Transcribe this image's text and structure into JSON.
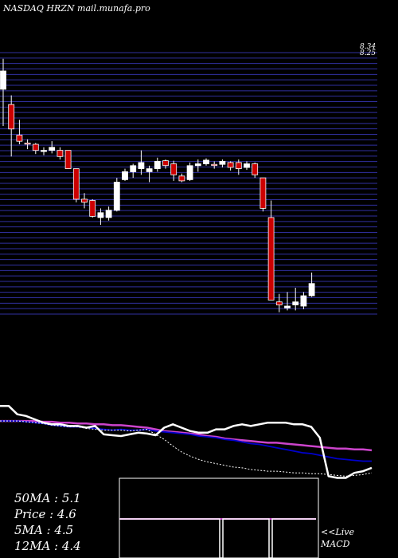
{
  "header": {
    "text": "NASDAQ HRZN mail.munafa.pro"
  },
  "colors": {
    "background": "#000000",
    "grid": "#3030a0",
    "up_candle": "#ffffff",
    "down_candle": "#cc0000",
    "price_line": "#ffffff",
    "ma_fast": "#ffffff",
    "ma_mid": "#0000cc",
    "ma_slow": "#cc44cc",
    "macd_zero": "#cc44cc",
    "panel_border": "#ffffff"
  },
  "chart_data": [
    {
      "type": "candlestick",
      "title": "NASDAQ HRZN mail.munafa.pro",
      "ylim": [
        4.12,
        8.4
      ],
      "y_ticks": [
        "8.34",
        "8.25"
      ],
      "candles": [
        {
          "o": 7.8,
          "h": 8.3,
          "l": 7.2,
          "c": 8.1
        },
        {
          "o": 7.55,
          "h": 7.7,
          "l": 6.7,
          "c": 7.15
        },
        {
          "o": 7.05,
          "h": 7.3,
          "l": 6.9,
          "c": 6.95
        },
        {
          "o": 6.92,
          "h": 6.98,
          "l": 6.82,
          "c": 6.9
        },
        {
          "o": 6.9,
          "h": 6.92,
          "l": 6.74,
          "c": 6.8
        },
        {
          "o": 6.78,
          "h": 6.85,
          "l": 6.72,
          "c": 6.8
        },
        {
          "o": 6.8,
          "h": 6.95,
          "l": 6.75,
          "c": 6.85
        },
        {
          "o": 6.8,
          "h": 6.85,
          "l": 6.65,
          "c": 6.7
        },
        {
          "o": 6.8,
          "h": 6.8,
          "l": 6.5,
          "c": 6.5
        },
        {
          "o": 6.5,
          "h": 6.5,
          "l": 5.95,
          "c": 6.0
        },
        {
          "o": 6.0,
          "h": 6.1,
          "l": 5.85,
          "c": 5.95
        },
        {
          "o": 5.98,
          "h": 6.0,
          "l": 5.7,
          "c": 5.72
        },
        {
          "o": 5.7,
          "h": 5.85,
          "l": 5.58,
          "c": 5.78
        },
        {
          "o": 5.7,
          "h": 5.88,
          "l": 5.65,
          "c": 5.82
        },
        {
          "o": 5.82,
          "h": 6.35,
          "l": 5.8,
          "c": 6.28
        },
        {
          "o": 6.32,
          "h": 6.5,
          "l": 6.3,
          "c": 6.45
        },
        {
          "o": 6.45,
          "h": 6.58,
          "l": 6.35,
          "c": 6.55
        },
        {
          "o": 6.5,
          "h": 6.8,
          "l": 6.4,
          "c": 6.6
        },
        {
          "o": 6.45,
          "h": 6.55,
          "l": 6.28,
          "c": 6.5
        },
        {
          "o": 6.5,
          "h": 6.68,
          "l": 6.45,
          "c": 6.62
        },
        {
          "o": 6.63,
          "h": 6.65,
          "l": 6.5,
          "c": 6.55
        },
        {
          "o": 6.58,
          "h": 6.63,
          "l": 6.3,
          "c": 6.4
        },
        {
          "o": 6.38,
          "h": 6.42,
          "l": 6.28,
          "c": 6.3
        },
        {
          "o": 6.32,
          "h": 6.6,
          "l": 6.3,
          "c": 6.55
        },
        {
          "o": 6.55,
          "h": 6.65,
          "l": 6.45,
          "c": 6.58
        },
        {
          "o": 6.58,
          "h": 6.67,
          "l": 6.55,
          "c": 6.64
        },
        {
          "o": 6.57,
          "h": 6.62,
          "l": 6.5,
          "c": 6.55
        },
        {
          "o": 6.57,
          "h": 6.65,
          "l": 6.52,
          "c": 6.62
        },
        {
          "o": 6.6,
          "h": 6.62,
          "l": 6.47,
          "c": 6.52
        },
        {
          "o": 6.6,
          "h": 6.65,
          "l": 6.4,
          "c": 6.5
        },
        {
          "o": 6.52,
          "h": 6.62,
          "l": 6.48,
          "c": 6.58
        },
        {
          "o": 6.58,
          "h": 6.6,
          "l": 6.35,
          "c": 6.4
        },
        {
          "o": 6.35,
          "h": 6.35,
          "l": 5.8,
          "c": 5.85
        },
        {
          "o": 5.7,
          "h": 5.98,
          "l": 4.35,
          "c": 4.35
        },
        {
          "o": 4.32,
          "h": 4.45,
          "l": 4.15,
          "c": 4.27
        },
        {
          "o": 4.22,
          "h": 4.48,
          "l": 4.18,
          "c": 4.25
        },
        {
          "o": 4.27,
          "h": 4.55,
          "l": 4.18,
          "c": 4.32
        },
        {
          "o": 4.25,
          "h": 4.48,
          "l": 4.2,
          "c": 4.42
        },
        {
          "o": 4.42,
          "h": 4.8,
          "l": 4.4,
          "c": 4.62
        }
      ]
    },
    {
      "type": "line",
      "ylim": [
        0,
        1
      ],
      "series": [
        {
          "values": [
            0.96,
            0.96,
            0.86,
            0.84,
            0.8,
            0.76,
            0.74,
            0.74,
            0.72,
            0.72,
            0.7,
            0.72,
            0.62,
            0.61,
            0.6,
            0.62,
            0.64,
            0.63,
            0.61,
            0.7,
            0.74,
            0.7,
            0.66,
            0.64,
            0.64,
            0.68,
            0.68,
            0.72,
            0.74,
            0.72,
            0.74,
            0.76,
            0.76,
            0.76,
            0.74,
            0.74,
            0.71,
            0.58,
            0.12,
            0.1,
            0.1,
            0.16,
            0.18,
            0.22
          ]
        },
        {
          "values": [
            0.78,
            0.78,
            0.78,
            0.77,
            0.76,
            0.75,
            0.73,
            0.72,
            0.71,
            0.71,
            0.69,
            0.68,
            0.67,
            0.67,
            0.67,
            0.66,
            0.67,
            0.68,
            0.62,
            0.56,
            0.48,
            0.41,
            0.36,
            0.32,
            0.29,
            0.27,
            0.25,
            0.23,
            0.22,
            0.2,
            0.19,
            0.18,
            0.18,
            0.17,
            0.16,
            0.16,
            0.15,
            0.15,
            0.14,
            0.13,
            0.12,
            0.13,
            0.14,
            0.16
          ]
        },
        {
          "values": [
            0.78,
            0.78,
            0.78,
            0.77,
            0.76,
            0.75,
            0.73,
            0.72,
            0.71,
            0.71,
            0.7,
            0.69,
            0.68,
            0.67,
            0.68,
            0.67,
            0.67,
            0.68,
            0.66,
            0.65,
            0.64,
            0.63,
            0.62,
            0.6,
            0.59,
            0.58,
            0.56,
            0.55,
            0.53,
            0.51,
            0.5,
            0.48,
            0.46,
            0.44,
            0.42,
            0.4,
            0.39,
            0.37,
            0.35,
            0.33,
            0.32,
            0.31,
            0.3,
            0.3
          ]
        },
        {
          "values": [
            0.78,
            0.78,
            0.78,
            0.78,
            0.78,
            0.77,
            0.77,
            0.76,
            0.76,
            0.75,
            0.75,
            0.74,
            0.74,
            0.73,
            0.73,
            0.72,
            0.71,
            0.7,
            0.68,
            0.66,
            0.65,
            0.64,
            0.63,
            0.62,
            0.6,
            0.59,
            0.57,
            0.56,
            0.55,
            0.54,
            0.53,
            0.52,
            0.52,
            0.51,
            0.5,
            0.49,
            0.48,
            0.47,
            0.46,
            0.45,
            0.45,
            0.44,
            0.44,
            0.43
          ]
        }
      ]
    }
  ],
  "stats": [
    {
      "label": "50MA",
      "sep": " : ",
      "value": "5.1"
    },
    {
      "label": "Price",
      "sep": "   : ",
      "value": "4.6"
    },
    {
      "label": "5MA",
      "sep": " : ",
      "value": "4.5"
    },
    {
      "label": "12MA",
      "sep": " : ",
      "value": "4.4"
    }
  ],
  "macd_label": "<<Live\nMACD"
}
